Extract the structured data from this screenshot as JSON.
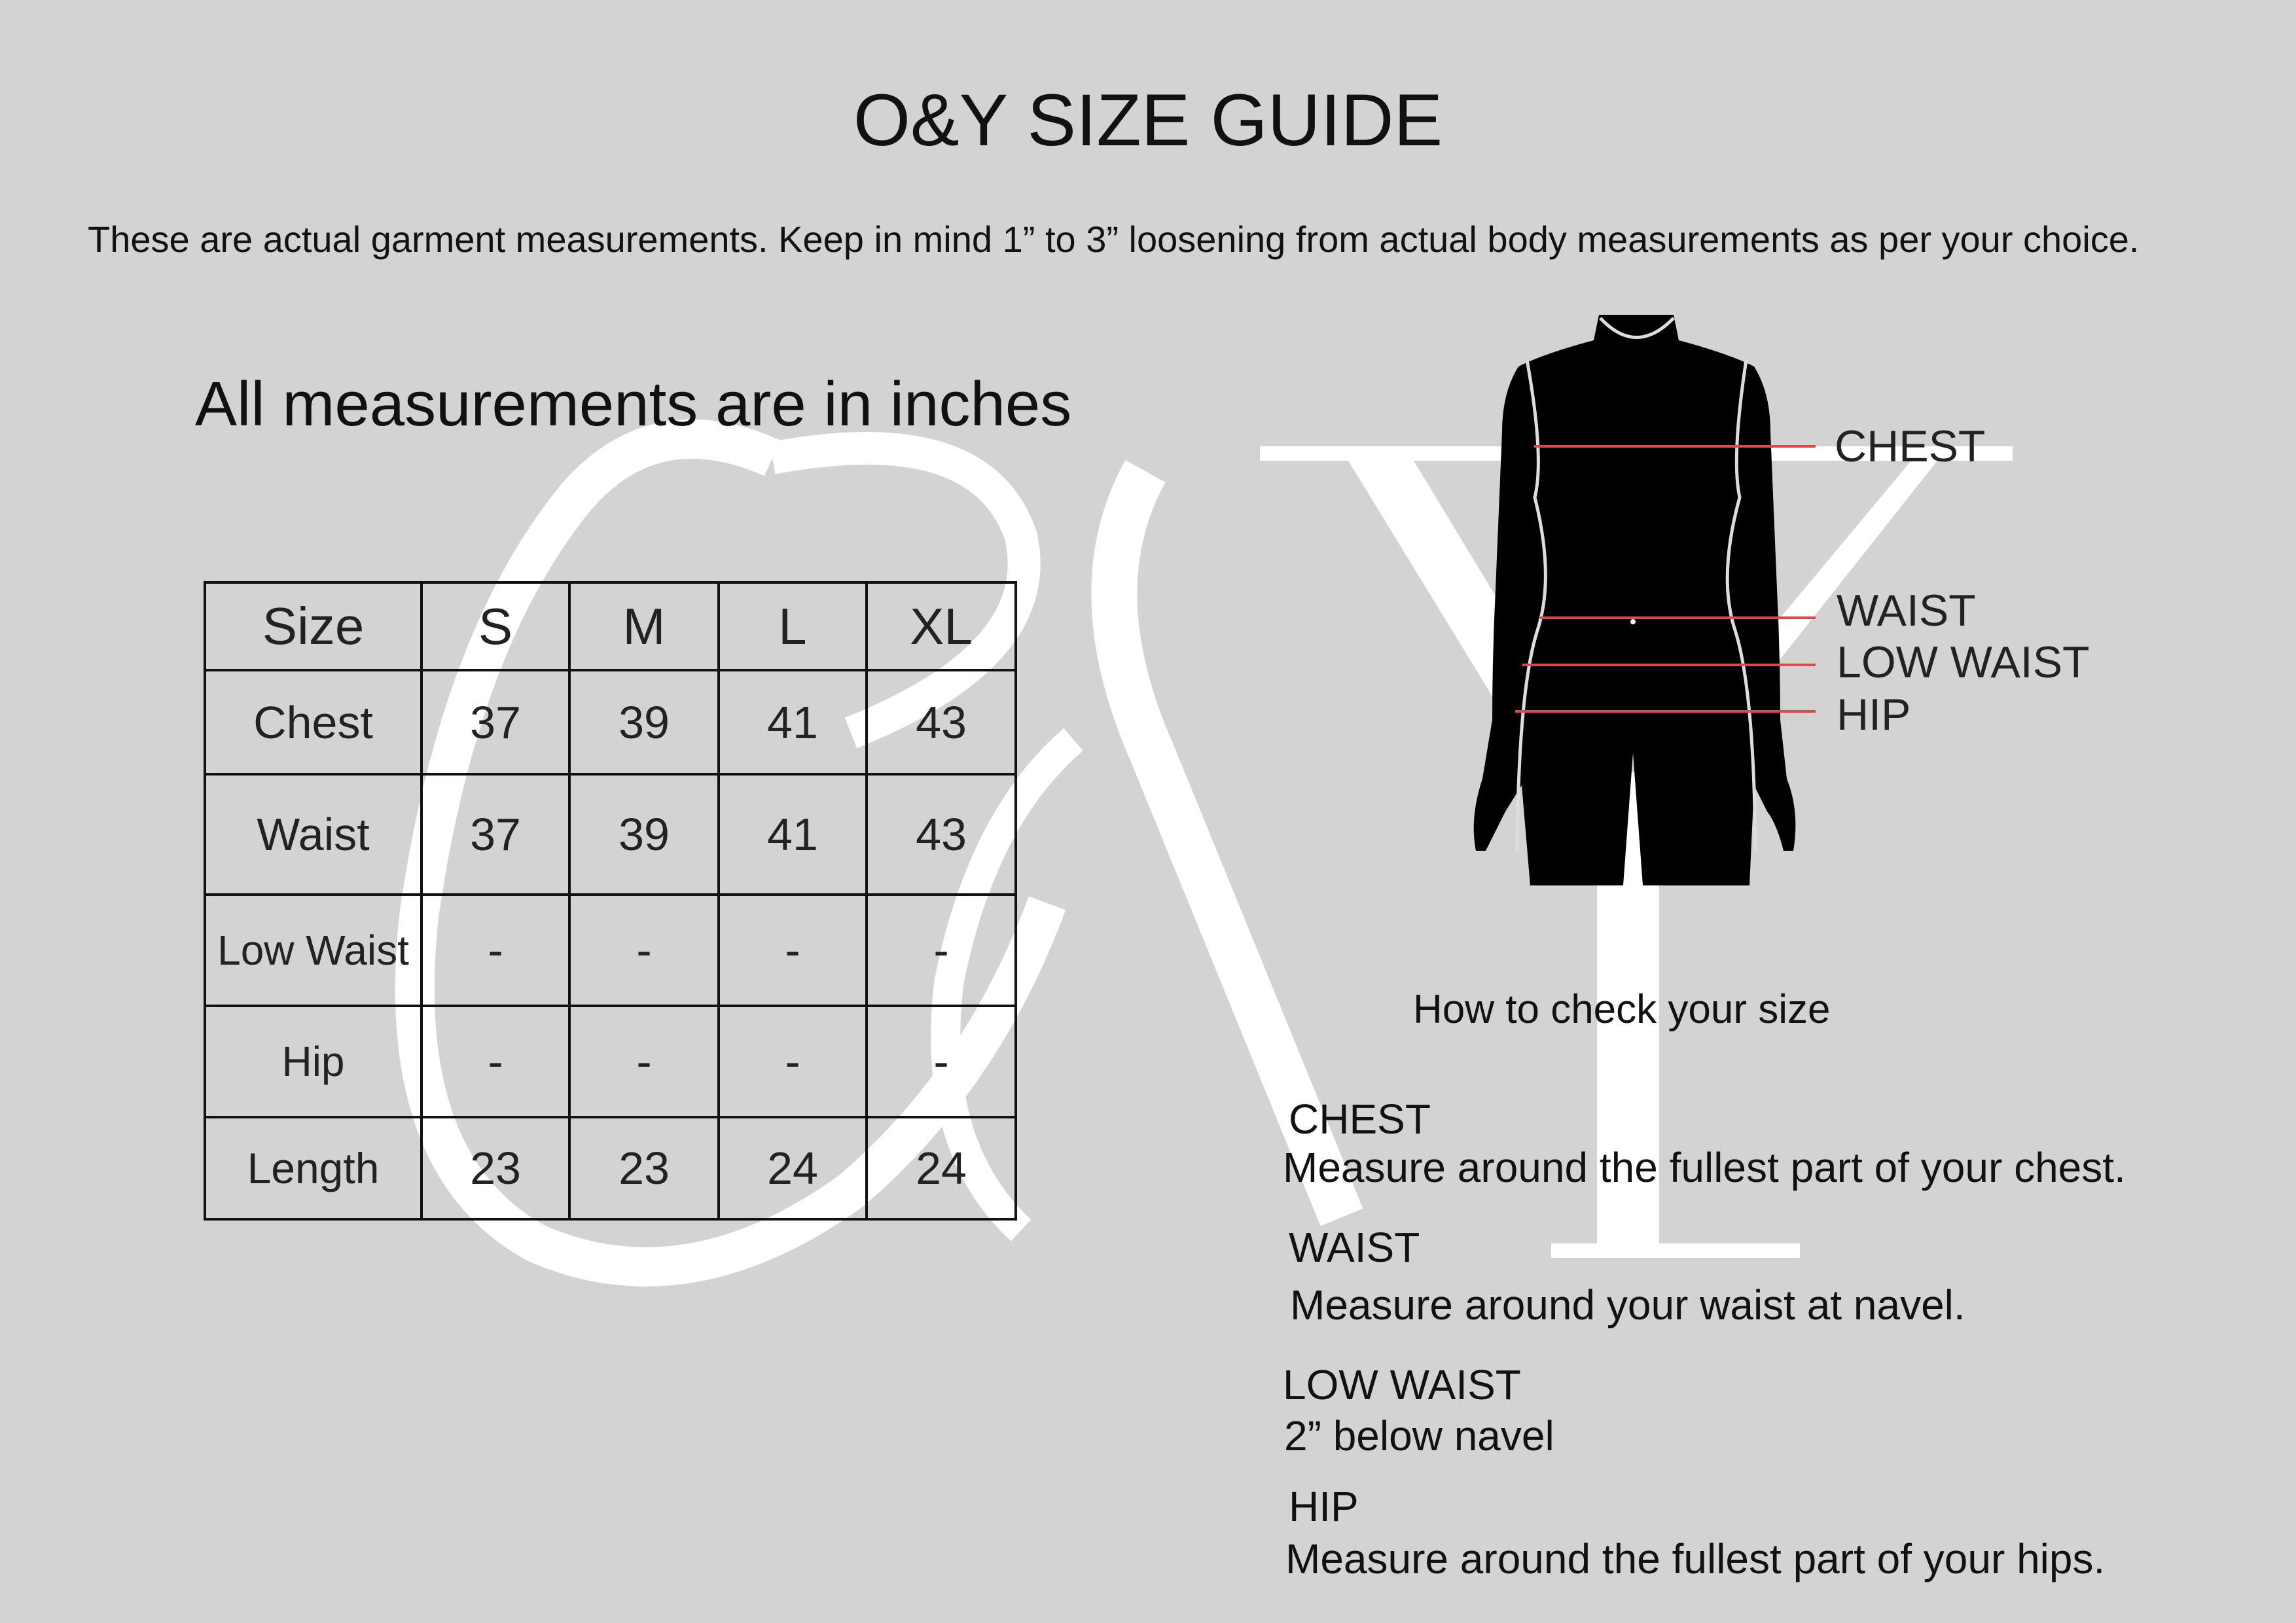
{
  "title": "O&Y SIZE GUIDE",
  "subtitle": "These are actual garment measurements. Keep in mind 1” to 3” loosening from actual body measurements as per your choice.",
  "units_note": "All measurements are in inches",
  "watermark": {
    "ampersand": "&",
    "letter": "Y",
    "color": "#ffffff"
  },
  "table": {
    "headers": [
      "Size",
      "S",
      "M",
      "L",
      "XL"
    ],
    "rows": [
      {
        "label": "Chest",
        "values": [
          "37",
          "39",
          "41",
          "43"
        ]
      },
      {
        "label": "Waist",
        "values": [
          "37",
          "39",
          "41",
          "43"
        ]
      },
      {
        "label": "Low Waist",
        "values": [
          "-",
          "-",
          "-",
          "-"
        ]
      },
      {
        "label": "Hip",
        "values": [
          "-",
          "-",
          "-",
          "-"
        ]
      },
      {
        "label": "Length",
        "values": [
          "23",
          "23",
          "24",
          "24"
        ]
      }
    ]
  },
  "figure": {
    "labels": [
      "CHEST",
      "WAIST",
      "LOW WAIST",
      "HIP"
    ],
    "line_color": "#e0474c"
  },
  "guide": {
    "heading": "How to check your size",
    "items": [
      {
        "title": "CHEST",
        "text": "Measure around the fullest part of your chest."
      },
      {
        "title": "WAIST",
        "text": "Measure around your waist at navel."
      },
      {
        "title": "LOW WAIST",
        "text": "2” below navel"
      },
      {
        "title": "HIP",
        "text": "Measure around the fullest part of your hips."
      }
    ]
  },
  "colors": {
    "background": "#d3d3d3",
    "text": "#111111"
  }
}
